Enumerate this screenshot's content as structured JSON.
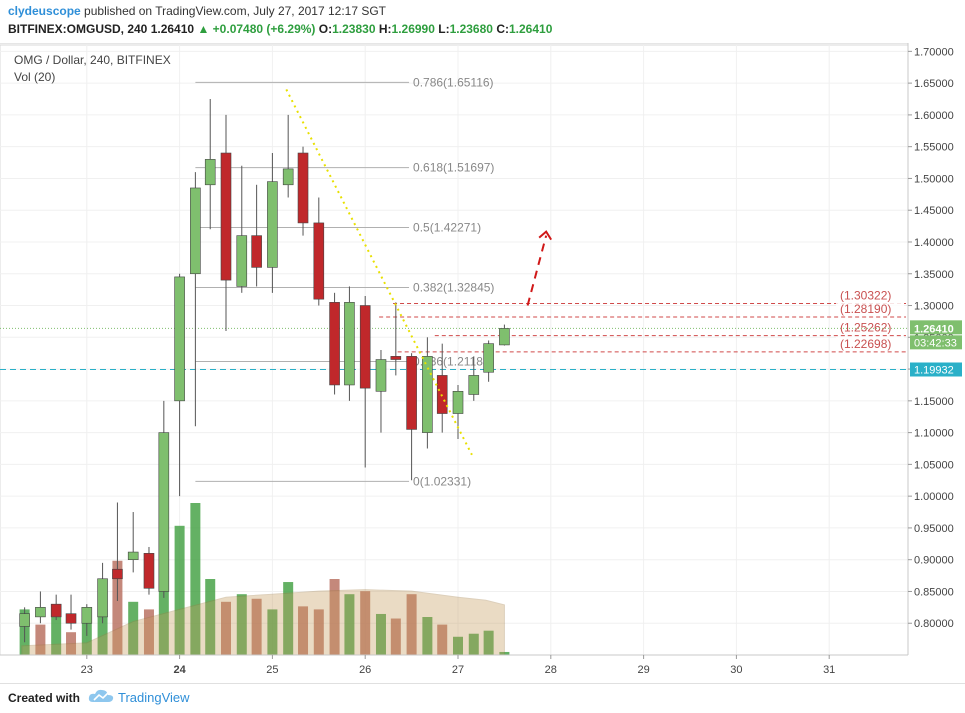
{
  "header": {
    "author": "clydeuscope",
    "published_text": "published on TradingView.com, July 27, 2017 12:17 SGT",
    "symbol": "BITFINEX:OMGUSD, 240",
    "last": "1.26410",
    "change_arrow": "▲",
    "change": "+0.07480 (+6.29%)",
    "o_label": "O:",
    "o_value": "1.23830",
    "h_label": "H:",
    "h_value": "1.26990",
    "l_label": "L:",
    "l_value": "1.23680",
    "c_label": "C:",
    "c_value": "1.26410"
  },
  "footer": {
    "created_with": "Created with",
    "brand": "TradingView"
  },
  "colors": {
    "up": "#7fbf6e",
    "down": "#c0282b",
    "vol_up": "#3d9e3d",
    "vol_down": "#b56a5a",
    "fib": "#b0b0b0",
    "hline": "#2ab0c8",
    "trend": "#e8e000"
  },
  "chart_data": {
    "type": "candlestick",
    "title": "OMG / Dollar, 240, BITFINEX",
    "indicator": "Vol (20)",
    "ylim": [
      0.75,
      1.71
    ],
    "y_ticks": [
      "1.70000",
      "1.65000",
      "1.60000",
      "1.55000",
      "1.50000",
      "1.45000",
      "1.40000",
      "1.35000",
      "1.30000",
      "1.25000",
      "1.20000",
      "1.15000",
      "1.10000",
      "1.05000",
      "1.00000",
      "0.95000",
      "0.90000",
      "0.85000",
      "0.80000"
    ],
    "x_ticks": [
      {
        "label": "23",
        "day": 23
      },
      {
        "label": "24",
        "day": 24
      },
      {
        "label": "25",
        "day": 25
      },
      {
        "label": "26",
        "day": 26
      },
      {
        "label": "27",
        "day": 27
      },
      {
        "label": "28",
        "day": 28
      },
      {
        "label": "29",
        "day": 29
      },
      {
        "label": "30",
        "day": 30
      },
      {
        "label": "31",
        "day": 31
      }
    ],
    "candles": [
      {
        "t": 22.33,
        "o": 0.795,
        "h": 0.825,
        "l": 0.77,
        "c": 0.815
      },
      {
        "t": 22.5,
        "o": 0.81,
        "h": 0.85,
        "l": 0.8,
        "c": 0.825
      },
      {
        "t": 22.67,
        "o": 0.83,
        "h": 0.845,
        "l": 0.805,
        "c": 0.81
      },
      {
        "t": 22.83,
        "o": 0.815,
        "h": 0.845,
        "l": 0.79,
        "c": 0.8
      },
      {
        "t": 23.0,
        "o": 0.8,
        "h": 0.83,
        "l": 0.78,
        "c": 0.825
      },
      {
        "t": 23.17,
        "o": 0.81,
        "h": 0.895,
        "l": 0.8,
        "c": 0.87
      },
      {
        "t": 23.33,
        "o": 0.885,
        "h": 0.99,
        "l": 0.835,
        "c": 0.87
      },
      {
        "t": 23.5,
        "o": 0.9,
        "h": 0.975,
        "l": 0.88,
        "c": 0.912
      },
      {
        "t": 23.67,
        "o": 0.91,
        "h": 0.92,
        "l": 0.845,
        "c": 0.855
      },
      {
        "t": 23.83,
        "o": 0.85,
        "h": 1.15,
        "l": 0.84,
        "c": 1.1
      },
      {
        "t": 24.0,
        "o": 1.15,
        "h": 1.35,
        "l": 1.0,
        "c": 1.345
      },
      {
        "t": 24.17,
        "o": 1.35,
        "h": 1.51,
        "l": 1.11,
        "c": 1.485
      },
      {
        "t": 24.33,
        "o": 1.49,
        "h": 1.625,
        "l": 1.42,
        "c": 1.53
      },
      {
        "t": 24.5,
        "o": 1.54,
        "h": 1.6,
        "l": 1.26,
        "c": 1.34
      },
      {
        "t": 24.67,
        "o": 1.33,
        "h": 1.52,
        "l": 1.32,
        "c": 1.41
      },
      {
        "t": 24.83,
        "o": 1.41,
        "h": 1.49,
        "l": 1.33,
        "c": 1.36
      },
      {
        "t": 25.0,
        "o": 1.36,
        "h": 1.54,
        "l": 1.32,
        "c": 1.495
      },
      {
        "t": 25.17,
        "o": 1.49,
        "h": 1.6,
        "l": 1.47,
        "c": 1.515
      },
      {
        "t": 25.33,
        "o": 1.54,
        "h": 1.55,
        "l": 1.41,
        "c": 1.43
      },
      {
        "t": 25.5,
        "o": 1.43,
        "h": 1.47,
        "l": 1.3,
        "c": 1.31
      },
      {
        "t": 25.67,
        "o": 1.305,
        "h": 1.32,
        "l": 1.16,
        "c": 1.175
      },
      {
        "t": 25.83,
        "o": 1.175,
        "h": 1.33,
        "l": 1.15,
        "c": 1.305
      },
      {
        "t": 26.0,
        "o": 1.3,
        "h": 1.315,
        "l": 1.045,
        "c": 1.17
      },
      {
        "t": 26.17,
        "o": 1.165,
        "h": 1.23,
        "l": 1.1,
        "c": 1.215
      },
      {
        "t": 26.33,
        "o": 1.22,
        "h": 1.305,
        "l": 1.19,
        "c": 1.215
      },
      {
        "t": 26.5,
        "o": 1.22,
        "h": 1.225,
        "l": 1.025,
        "c": 1.105
      },
      {
        "t": 26.67,
        "o": 1.1,
        "h": 1.25,
        "l": 1.075,
        "c": 1.22
      },
      {
        "t": 26.83,
        "o": 1.19,
        "h": 1.24,
        "l": 1.1,
        "c": 1.13
      },
      {
        "t": 27.0,
        "o": 1.13,
        "h": 1.175,
        "l": 1.09,
        "c": 1.165
      },
      {
        "t": 27.17,
        "o": 1.16,
        "h": 1.22,
        "l": 1.15,
        "c": 1.19
      },
      {
        "t": 27.33,
        "o": 1.195,
        "h": 1.245,
        "l": 1.18,
        "c": 1.24
      },
      {
        "t": 27.5,
        "o": 1.238,
        "h": 1.27,
        "l": 1.237,
        "c": 1.264
      }
    ],
    "volume": [
      {
        "t": 22.33,
        "v": 0.3,
        "up": true
      },
      {
        "t": 22.5,
        "v": 0.2,
        "up": false
      },
      {
        "t": 22.67,
        "v": 0.25,
        "up": true
      },
      {
        "t": 22.83,
        "v": 0.15,
        "up": false
      },
      {
        "t": 23.0,
        "v": 0.22,
        "up": true
      },
      {
        "t": 23.17,
        "v": 0.3,
        "up": true
      },
      {
        "t": 23.33,
        "v": 0.62,
        "up": false
      },
      {
        "t": 23.5,
        "v": 0.35,
        "up": true
      },
      {
        "t": 23.67,
        "v": 0.3,
        "up": false
      },
      {
        "t": 23.83,
        "v": 0.52,
        "up": true
      },
      {
        "t": 24.0,
        "v": 0.85,
        "up": true
      },
      {
        "t": 24.17,
        "v": 1.0,
        "up": true
      },
      {
        "t": 24.33,
        "v": 0.5,
        "up": true
      },
      {
        "t": 24.5,
        "v": 0.35,
        "up": false
      },
      {
        "t": 24.67,
        "v": 0.4,
        "up": true
      },
      {
        "t": 24.83,
        "v": 0.37,
        "up": false
      },
      {
        "t": 25.0,
        "v": 0.3,
        "up": true
      },
      {
        "t": 25.17,
        "v": 0.48,
        "up": true
      },
      {
        "t": 25.33,
        "v": 0.32,
        "up": false
      },
      {
        "t": 25.5,
        "v": 0.3,
        "up": false
      },
      {
        "t": 25.67,
        "v": 0.5,
        "up": false
      },
      {
        "t": 25.83,
        "v": 0.4,
        "up": true
      },
      {
        "t": 26.0,
        "v": 0.42,
        "up": false
      },
      {
        "t": 26.17,
        "v": 0.27,
        "up": true
      },
      {
        "t": 26.33,
        "v": 0.24,
        "up": false
      },
      {
        "t": 26.5,
        "v": 0.4,
        "up": false
      },
      {
        "t": 26.67,
        "v": 0.25,
        "up": true
      },
      {
        "t": 26.83,
        "v": 0.2,
        "up": false
      },
      {
        "t": 27.0,
        "v": 0.12,
        "up": true
      },
      {
        "t": 27.17,
        "v": 0.14,
        "up": true
      },
      {
        "t": 27.33,
        "v": 0.16,
        "up": true
      },
      {
        "t": 27.5,
        "v": 0.02,
        "up": true
      }
    ],
    "volume_ma": [
      [
        22.3,
        0.06
      ],
      [
        23.0,
        0.08
      ],
      [
        23.5,
        0.22
      ],
      [
        24.0,
        0.3
      ],
      [
        24.5,
        0.38
      ],
      [
        25.0,
        0.4
      ],
      [
        25.5,
        0.42
      ],
      [
        26.0,
        0.43
      ],
      [
        26.5,
        0.42
      ],
      [
        27.0,
        0.38
      ],
      [
        27.3,
        0.36
      ],
      [
        27.5,
        0.33
      ]
    ],
    "fib_levels": [
      {
        "label": "0.786(1.65116)",
        "price": 1.65116,
        "t0": 24.17,
        "t1": 27.55
      },
      {
        "label": "0.618(1.51697)",
        "price": 1.51697,
        "t0": 24.17,
        "t1": 27.55
      },
      {
        "label": "0.5(1.42271)",
        "price": 1.42271,
        "t0": 24.17,
        "t1": 27.55
      },
      {
        "label": "0.382(1.32845)",
        "price": 1.32845,
        "t0": 24.17,
        "t1": 27.55
      },
      {
        "label": "0.236(1.21183)",
        "price": 1.21183,
        "t0": 24.17,
        "t1": 27.55
      },
      {
        "label": "0(1.02331)",
        "price": 1.02331,
        "t0": 24.17,
        "t1": 27.55
      }
    ],
    "red_levels": [
      {
        "label": "(1.30322)",
        "price": 1.30322,
        "t0": 26.3
      },
      {
        "label": "(1.28190)",
        "price": 1.2819,
        "t0": 26.15
      },
      {
        "label": "(1.25262)",
        "price": 1.25262,
        "t0": 26.75
      },
      {
        "label": "(1.22698)",
        "price": 1.22698,
        "t0": 26.35
      }
    ],
    "trend_line": [
      [
        25.15,
        1.64
      ],
      [
        27.15,
        1.065
      ]
    ],
    "projection": [
      [
        27.75,
        1.3
      ],
      [
        27.95,
        1.41
      ]
    ],
    "price_line": {
      "price": 1.19932,
      "label": "1.19932"
    },
    "last_price": {
      "price": 1.2641,
      "label": "1.26410",
      "countdown": "03:42:33"
    }
  }
}
